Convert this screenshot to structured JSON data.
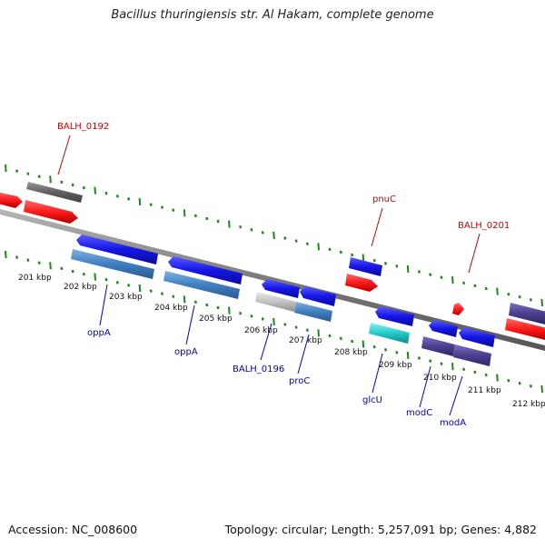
{
  "title": "Bacillus thuringiensis str. Al Hakam, complete genome",
  "footer": {
    "accession": "Accession: NC_008600",
    "summary": "Topology: circular; Length: 5,257,091 bp; Genes: 4,882"
  },
  "colors": {
    "forward_cds": "#1515e6",
    "reverse_cds": "#3f7fbf",
    "forward_gene": "#ff1a1a",
    "reverse_gene": "#606060",
    "pseudogene": "#c2c2c2",
    "tRNA_like": "#22cccc",
    "purple_cds": "#4a3f8f",
    "backbone": "#8a8a8a",
    "tick": "#1a8a1a",
    "label_red": "#cc0000",
    "label_blue": "#0000cc"
  },
  "scale_labels": [
    "201 kbp",
    "202 kbp",
    "203 kbp",
    "204 kbp",
    "205 kbp",
    "206 kbp",
    "207 kbp",
    "208 kbp",
    "209 kbp",
    "210 kbp",
    "211 kbp",
    "212 kbp"
  ],
  "gene_labels": {
    "BALH_0192": "BALH_0192",
    "pnuC": "pnuC",
    "BALH_0201": "BALH_0201",
    "oppA_1": "oppA",
    "oppA_2": "oppA",
    "BALH_0196": "BALH_0196",
    "proC": "proC",
    "glcU": "glcU",
    "modC": "modC",
    "modA": "modA"
  }
}
